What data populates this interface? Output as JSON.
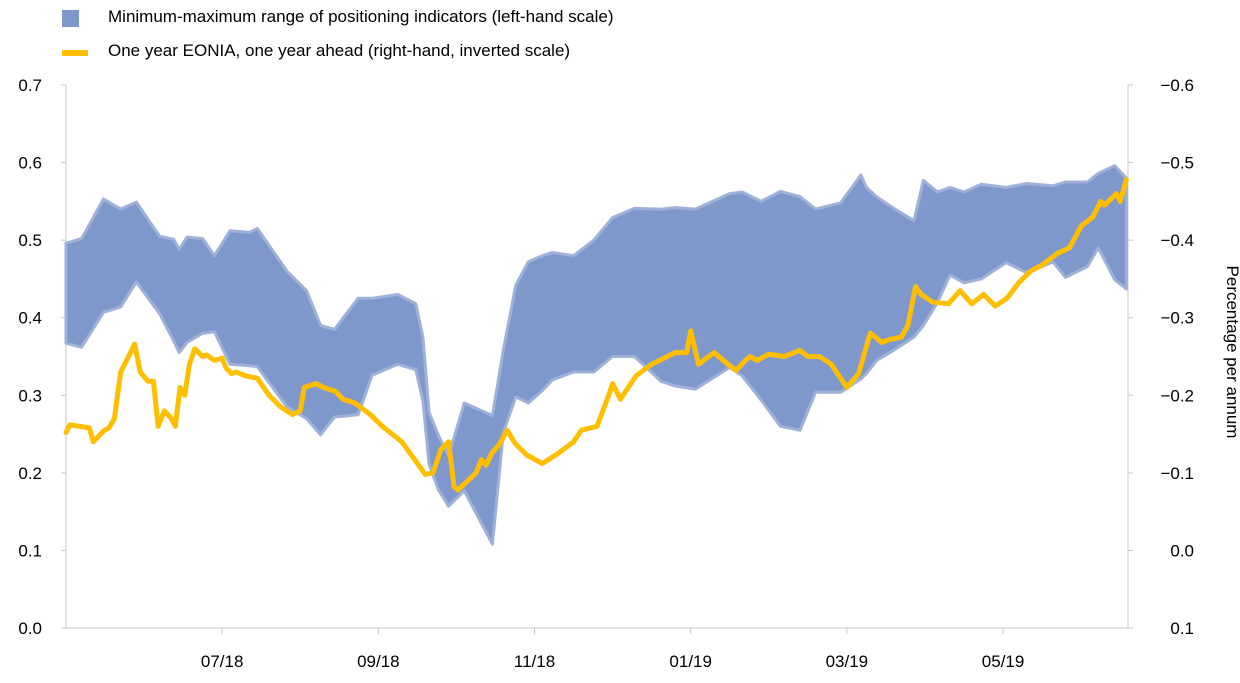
{
  "legend": {
    "area_label": "Minimum-maximum range of positioning indicators (left-hand scale)",
    "line_label": "One year EONIA, one year ahead (right-hand, inverted scale)"
  },
  "colors": {
    "area_fill": "#7f98cc",
    "area_edge": "#9fb1d8",
    "line": "#ffbf00",
    "axis": "#c8c8c8"
  },
  "chart_data": {
    "type": "area",
    "x_tick_labels": [
      "07/18",
      "09/18",
      "11/18",
      "01/19",
      "03/19",
      "05/19"
    ],
    "x_tick_months": [
      2,
      4,
      6,
      8,
      10,
      12
    ],
    "xlim_months": [
      0,
      13.6
    ],
    "left_axis": {
      "ylim": [
        0,
        0.7
      ],
      "tick_labels": [
        "0.0",
        "0.1",
        "0.2",
        "0.3",
        "0.4",
        "0.5",
        "0.6",
        "0.7"
      ]
    },
    "right_axis": {
      "label": "Percentage per annum",
      "inverted": true,
      "ylim": [
        0.1,
        -0.6
      ],
      "tick_labels": [
        "0.1",
        "0.0",
        "−0.1",
        "−0.2",
        "−0.3",
        "−0.4",
        "−0.5",
        "−0.6"
      ]
    },
    "series": [
      {
        "name": "Minimum-maximum range of positioning indicators (left-hand scale)",
        "axis": "left",
        "x": [
          0.0,
          0.2,
          0.48,
          0.7,
          0.9,
          1.2,
          1.38,
          1.45,
          1.55,
          1.75,
          1.9,
          2.1,
          2.35,
          2.45,
          2.83,
          3.08,
          3.26,
          3.44,
          3.74,
          3.92,
          4.25,
          4.48,
          4.57,
          4.65,
          4.77,
          4.9,
          5.1,
          5.46,
          5.6,
          5.76,
          5.92,
          6.1,
          6.23,
          6.5,
          6.76,
          7.0,
          7.28,
          7.62,
          7.8,
          8.06,
          8.5,
          8.66,
          8.9,
          9.15,
          9.4,
          9.6,
          9.92,
          10.18,
          10.25,
          10.38,
          10.6,
          10.86,
          10.98,
          11.16,
          11.32,
          11.5,
          11.72,
          12.04,
          12.3,
          12.64,
          12.8,
          13.08,
          13.22,
          13.43,
          13.58
        ],
        "max": [
          0.496,
          0.502,
          0.553,
          0.54,
          0.549,
          0.505,
          0.501,
          0.488,
          0.504,
          0.502,
          0.48,
          0.512,
          0.51,
          0.515,
          0.46,
          0.435,
          0.39,
          0.385,
          0.425,
          0.425,
          0.43,
          0.418,
          0.375,
          0.278,
          0.248,
          0.222,
          0.29,
          0.274,
          0.358,
          0.442,
          0.472,
          0.48,
          0.484,
          0.48,
          0.5,
          0.529,
          0.541,
          0.54,
          0.542,
          0.54,
          0.56,
          0.562,
          0.55,
          0.563,
          0.556,
          0.54,
          0.548,
          0.584,
          0.568,
          0.556,
          0.541,
          0.525,
          0.577,
          0.562,
          0.568,
          0.562,
          0.572,
          0.568,
          0.573,
          0.57,
          0.575,
          0.575,
          0.586,
          0.596,
          0.58
        ],
        "min": [
          0.367,
          0.362,
          0.407,
          0.414,
          0.446,
          0.405,
          0.37,
          0.355,
          0.368,
          0.38,
          0.382,
          0.34,
          0.338,
          0.337,
          0.285,
          0.27,
          0.249,
          0.272,
          0.275,
          0.326,
          0.34,
          0.333,
          0.293,
          0.211,
          0.178,
          0.157,
          0.177,
          0.108,
          0.252,
          0.298,
          0.29,
          0.306,
          0.32,
          0.33,
          0.33,
          0.35,
          0.35,
          0.318,
          0.312,
          0.308,
          0.336,
          0.325,
          0.294,
          0.26,
          0.255,
          0.304,
          0.304,
          0.321,
          0.328,
          0.345,
          0.358,
          0.375,
          0.39,
          0.42,
          0.455,
          0.445,
          0.45,
          0.471,
          0.458,
          0.472,
          0.452,
          0.466,
          0.49,
          0.449,
          0.437
        ]
      },
      {
        "name": "One year EONIA, one year ahead (right-hand, inverted scale)",
        "axis": "right",
        "x": [
          0.0,
          0.05,
          0.3,
          0.35,
          0.48,
          0.55,
          0.62,
          0.7,
          0.8,
          0.88,
          0.95,
          1.05,
          1.12,
          1.18,
          1.26,
          1.35,
          1.4,
          1.46,
          1.52,
          1.58,
          1.65,
          1.75,
          1.8,
          1.9,
          2.0,
          2.05,
          2.12,
          2.18,
          2.3,
          2.45,
          2.6,
          2.75,
          2.9,
          3.0,
          3.05,
          3.2,
          3.3,
          3.45,
          3.55,
          3.7,
          3.9,
          4.05,
          4.3,
          4.5,
          4.6,
          4.7,
          4.8,
          4.9,
          4.97,
          5.02,
          5.2,
          5.25,
          5.32,
          5.38,
          5.45,
          5.55,
          5.65,
          5.75,
          5.9,
          6.1,
          6.3,
          6.5,
          6.6,
          6.8,
          6.95,
          7.0,
          7.1,
          7.2,
          7.3,
          7.5,
          7.7,
          7.8,
          7.95,
          8.0,
          8.1,
          8.3,
          8.5,
          8.58,
          8.7,
          8.76,
          8.85,
          9.0,
          9.2,
          9.4,
          9.5,
          9.65,
          9.8,
          10.0,
          10.15,
          10.3,
          10.45,
          10.55,
          10.7,
          10.78,
          10.88,
          10.95,
          11.1,
          11.3,
          11.45,
          11.6,
          11.75,
          11.9,
          12.05,
          12.2,
          12.35,
          12.5,
          12.7,
          12.85,
          13.0,
          13.15,
          13.25,
          13.3,
          13.45,
          13.5,
          13.58
        ],
        "y": [
          -0.152,
          -0.162,
          -0.158,
          -0.14,
          -0.154,
          -0.158,
          -0.17,
          -0.23,
          -0.25,
          -0.266,
          -0.23,
          -0.218,
          -0.218,
          -0.16,
          -0.18,
          -0.17,
          -0.16,
          -0.21,
          -0.2,
          -0.24,
          -0.26,
          -0.25,
          -0.252,
          -0.245,
          -0.248,
          -0.235,
          -0.228,
          -0.23,
          -0.225,
          -0.222,
          -0.2,
          -0.185,
          -0.175,
          -0.18,
          -0.21,
          -0.215,
          -0.21,
          -0.205,
          -0.195,
          -0.19,
          -0.175,
          -0.16,
          -0.14,
          -0.112,
          -0.098,
          -0.1,
          -0.13,
          -0.14,
          -0.082,
          -0.078,
          -0.095,
          -0.1,
          -0.117,
          -0.11,
          -0.125,
          -0.137,
          -0.155,
          -0.138,
          -0.123,
          -0.112,
          -0.125,
          -0.14,
          -0.155,
          -0.16,
          -0.2,
          -0.215,
          -0.195,
          -0.21,
          -0.225,
          -0.24,
          -0.25,
          -0.255,
          -0.255,
          -0.283,
          -0.24,
          -0.255,
          -0.238,
          -0.232,
          -0.245,
          -0.25,
          -0.245,
          -0.253,
          -0.25,
          -0.258,
          -0.25,
          -0.25,
          -0.24,
          -0.21,
          -0.228,
          -0.28,
          -0.268,
          -0.272,
          -0.275,
          -0.29,
          -0.34,
          -0.33,
          -0.32,
          -0.318,
          -0.335,
          -0.318,
          -0.33,
          -0.315,
          -0.325,
          -0.345,
          -0.36,
          -0.368,
          -0.383,
          -0.39,
          -0.418,
          -0.43,
          -0.45,
          -0.445,
          -0.46,
          -0.45,
          -0.478
        ]
      }
    ]
  }
}
